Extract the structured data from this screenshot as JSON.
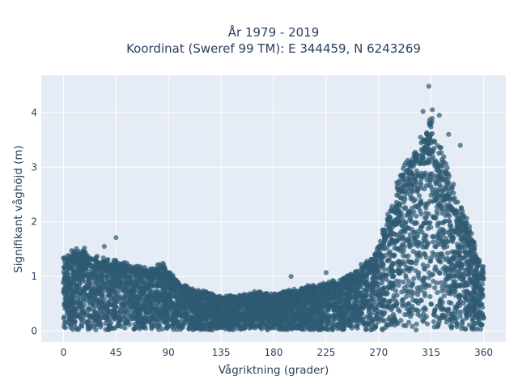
{
  "chart_data": {
    "type": "scatter",
    "title_line1": "År 1979 - 2019",
    "title_line2": "Koordinat (Sweref 99 TM): E 344459, N 6243269",
    "xlabel": "Vågriktning (grader)",
    "ylabel": "Signifikant våghöjd (m)",
    "xlim": [
      -19,
      379
    ],
    "ylim": [
      -0.2,
      4.68
    ],
    "x_ticks": [
      0,
      45,
      90,
      135,
      180,
      225,
      270,
      315,
      360
    ],
    "y_ticks": [
      0,
      1,
      2,
      3,
      4
    ],
    "grid": true,
    "legend": "none",
    "colors": {
      "plot_background": "#e5ecf6",
      "grid": "#ffffff",
      "marker": "#2e5a72",
      "text": "#2a3f5f"
    },
    "density_note_values": "upper envelope of point cloud (x in degrees, y in m)",
    "envelope_x": [
      0,
      10,
      20,
      30,
      45,
      60,
      75,
      85,
      90,
      100,
      110,
      120,
      135,
      150,
      165,
      180,
      195,
      210,
      225,
      240,
      255,
      265,
      270,
      280,
      290,
      300,
      308,
      315,
      322,
      330,
      340,
      350,
      355,
      360
    ],
    "envelope_y": [
      1.35,
      1.45,
      1.4,
      1.3,
      1.25,
      1.15,
      1.1,
      1.2,
      1.05,
      0.85,
      0.75,
      0.7,
      0.62,
      0.62,
      0.7,
      0.65,
      0.72,
      0.8,
      0.85,
      0.95,
      1.1,
      1.35,
      1.6,
      2.2,
      2.9,
      3.2,
      3.5,
      3.8,
      3.3,
      2.8,
      2.3,
      1.7,
      1.4,
      1.1
    ],
    "outliers": [
      {
        "x": 313,
        "y": 4.48
      },
      {
        "x": 308,
        "y": 4.02
      },
      {
        "x": 316,
        "y": 4.05
      },
      {
        "x": 322,
        "y": 3.95
      },
      {
        "x": 330,
        "y": 3.6
      },
      {
        "x": 340,
        "y": 3.4
      },
      {
        "x": 45,
        "y": 1.71
      },
      {
        "x": 35,
        "y": 1.55
      },
      {
        "x": 18,
        "y": 1.52
      },
      {
        "x": 255,
        "y": 1.22
      },
      {
        "x": 225,
        "y": 1.07
      },
      {
        "x": 195,
        "y": 1.0
      }
    ]
  }
}
